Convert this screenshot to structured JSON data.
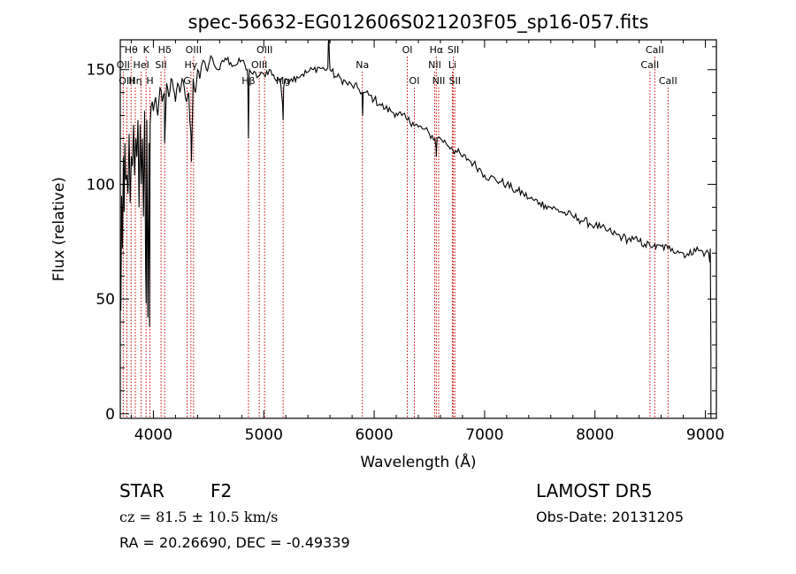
{
  "chart_data": {
    "type": "line",
    "title": "spec-56632-EG012606S021203F05_sp16-057.fits",
    "xlabel": "Wavelength (Å)",
    "ylabel": "Flux (relative)",
    "xlim": [
      3700,
      9100
    ],
    "ylim": [
      -2,
      163
    ],
    "xticks": [
      4000,
      5000,
      6000,
      7000,
      8000,
      9000
    ],
    "xtick_labels": [
      "4000",
      "5000",
      "6000",
      "7000",
      "8000",
      "9000"
    ],
    "yticks": [
      0,
      50,
      100,
      150
    ],
    "ytick_labels": [
      "0",
      "50",
      "100",
      "150"
    ],
    "grid": false,
    "legend": "none",
    "line_color": "#000000",
    "marker_color": "#cc0000",
    "series": [
      {
        "x": [
          3705,
          3712,
          3720,
          3728,
          3735,
          3742,
          3750,
          3760,
          3770,
          3780,
          3790,
          3800,
          3810,
          3820,
          3830,
          3840,
          3850,
          3860,
          3870,
          3880,
          3890,
          3900,
          3910,
          3920,
          3930,
          3935,
          3940,
          3950,
          3960,
          3965,
          3970,
          3980,
          3990,
          4000,
          4020,
          4040,
          4060,
          4080,
          4100,
          4102,
          4120,
          4140,
          4160,
          4180,
          4200,
          4220,
          4240,
          4260,
          4280,
          4300,
          4320,
          4330,
          4340,
          4345,
          4360,
          4380,
          4400,
          4420,
          4450,
          4480,
          4500,
          4520,
          4550,
          4600,
          4650,
          4700,
          4750,
          4800,
          4830,
          4850,
          4855,
          4861,
          4866,
          4870,
          4900,
          4950,
          5000,
          5050,
          5100,
          5150,
          5170,
          5175,
          5180,
          5200,
          5250,
          5300,
          5350,
          5400,
          5450,
          5500,
          5550,
          5580,
          5585,
          5590,
          5595,
          5600,
          5650,
          5700,
          5750,
          5800,
          5850,
          5890,
          5895,
          5900,
          5950,
          6000,
          6050,
          6100,
          6150,
          6200,
          6250,
          6300,
          6350,
          6400,
          6450,
          6500,
          6550,
          6560,
          6563,
          6566,
          6570,
          6600,
          6650,
          6700,
          6750,
          6800,
          6850,
          6900,
          6950,
          7000,
          7050,
          7100,
          7150,
          7200,
          7250,
          7300,
          7350,
          7400,
          7450,
          7500,
          7550,
          7600,
          7650,
          7700,
          7750,
          7800,
          7850,
          7900,
          7950,
          8000,
          8050,
          8100,
          8150,
          8200,
          8250,
          8300,
          8350,
          8400,
          8450,
          8500,
          8542,
          8550,
          8600,
          8662,
          8700,
          8750,
          8800,
          8850,
          8900,
          8950,
          9000,
          9030,
          9040,
          9045,
          9050
        ],
        "y": [
          45,
          95,
          72,
          112,
          88,
          118,
          102,
          104,
          96,
          122,
          92,
          112,
          108,
          126,
          104,
          120,
          112,
          128,
          90,
          126,
          100,
          120,
          86,
          132,
          62,
          48,
          128,
          42,
          118,
          38,
          126,
          134,
          136,
          132,
          138,
          130,
          142,
          136,
          140,
          118,
          144,
          138,
          146,
          142,
          136,
          144,
          140,
          146,
          142,
          136,
          140,
          128,
          122,
          110,
          146,
          140,
          150,
          146,
          154,
          150,
          152,
          156,
          152,
          150,
          155,
          153,
          152,
          154,
          152,
          150,
          146,
          120,
          144,
          150,
          148,
          147,
          148,
          150,
          146,
          146,
          135,
          128,
          142,
          146,
          146,
          147,
          148,
          149,
          150,
          151,
          150,
          151,
          162,
          172,
          155,
          150,
          147,
          146,
          144,
          143,
          142,
          140,
          130,
          140,
          139,
          137,
          135,
          133,
          132,
          131,
          130,
          128,
          127,
          125,
          124,
          122,
          120,
          116,
          112,
          116,
          120,
          120,
          118,
          116,
          114,
          112,
          111,
          109,
          107,
          104,
          103,
          102,
          101,
          100,
          98,
          97,
          96,
          94,
          93,
          92,
          91,
          90,
          89,
          88,
          87,
          86,
          85,
          84,
          83,
          82,
          81,
          80,
          79,
          78,
          77,
          76,
          76,
          75,
          74,
          73,
          74,
          72,
          73,
          72,
          72,
          71,
          70,
          69,
          72,
          71,
          70,
          70,
          66,
          72,
          26
        ],
        "stroke": "#000000"
      }
    ],
    "spectral_lines": [
      {
        "label": "Hθ",
        "x": 3798,
        "row": 0
      },
      {
        "label": "OII",
        "x": 3727,
        "row": 1
      },
      {
        "label": "OIII",
        "x": 3760,
        "row": 2
      },
      {
        "label": "Hη",
        "x": 3836,
        "row": 2
      },
      {
        "label": "HeI",
        "x": 3889,
        "row": 1
      },
      {
        "label": "K",
        "x": 3934,
        "row": 0
      },
      {
        "label": "H",
        "x": 3969,
        "row": 2
      },
      {
        "label": "Hδ",
        "x": 4102,
        "row": 0
      },
      {
        "label": "SII",
        "x": 4069,
        "row": 1
      },
      {
        "label": "OIII",
        "x": 4364,
        "row": 0
      },
      {
        "label": "Hγ",
        "x": 4340,
        "row": 1
      },
      {
        "label": "G",
        "x": 4305,
        "row": 2
      },
      {
        "label": "Hβ",
        "x": 4861,
        "row": 2
      },
      {
        "label": "OIII",
        "x": 5007,
        "row": 0
      },
      {
        "label": "OIII",
        "x": 4959,
        "row": 1
      },
      {
        "label": "Mg",
        "x": 5175,
        "row": 2
      },
      {
        "label": "Na",
        "x": 5893,
        "row": 1
      },
      {
        "label": "OI",
        "x": 6300,
        "row": 0
      },
      {
        "label": "OI",
        "x": 6364,
        "row": 2
      },
      {
        "label": "Hα",
        "x": 6563,
        "row": 0
      },
      {
        "label": "NII",
        "x": 6548,
        "row": 1
      },
      {
        "label": "NII",
        "x": 6584,
        "row": 2
      },
      {
        "label": "SII",
        "x": 6717,
        "row": 0
      },
      {
        "label": "Li",
        "x": 6708,
        "row": 1
      },
      {
        "label": "SII",
        "x": 6731,
        "row": 2
      },
      {
        "label": "CaII",
        "x": 8542,
        "row": 0
      },
      {
        "label": "CaII",
        "x": 8498,
        "row": 1
      },
      {
        "label": "CaII",
        "x": 8662,
        "row": 2
      }
    ]
  },
  "info": {
    "object_class": "STAR",
    "subclass": "F2",
    "survey": "LAMOST DR5",
    "velocity": "cz = 81.5 ± 10.5 km/s",
    "obs_date": "Obs-Date: 20131205",
    "coords": "RA =  20.26690, DEC =  -0.49339"
  }
}
